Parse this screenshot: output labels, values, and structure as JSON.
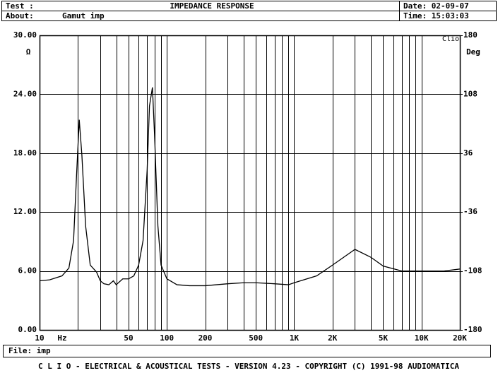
{
  "header": {
    "test_label": "Test :",
    "title": "IMPEDANCE RESPONSE",
    "date": "Date: 02-09-07",
    "about_label": "About:",
    "about": "Gamut imp",
    "time": "Time: 15:03:03"
  },
  "chart_data": {
    "type": "line",
    "x_scale": "log",
    "color": "#000000",
    "grid": true,
    "x_unit": "Hz",
    "y_unit": "Ω",
    "y2_label": "Deg",
    "watermark": "Clio",
    "x": [
      10,
      12,
      15,
      17,
      18.5,
      19.5,
      20.5,
      21.5,
      23,
      25,
      28,
      30,
      32,
      35,
      38,
      40,
      45,
      50,
      55,
      60,
      65,
      70,
      73,
      77,
      80,
      85,
      90,
      100,
      120,
      150,
      200,
      300,
      400,
      500,
      700,
      900,
      1000,
      1500,
      2000,
      3000,
      4000,
      5000,
      7000,
      10000,
      15000,
      20000
    ],
    "values": [
      5.0,
      5.1,
      5.5,
      6.3,
      9.1,
      15.6,
      21.4,
      17.8,
      10.6,
      6.6,
      5.9,
      5.0,
      4.7,
      4.6,
      5.0,
      4.6,
      5.2,
      5.2,
      5.5,
      6.6,
      9.1,
      16.3,
      22.8,
      24.7,
      19.9,
      10.6,
      6.6,
      5.2,
      4.6,
      4.5,
      4.5,
      4.7,
      4.8,
      4.8,
      4.7,
      4.6,
      4.8,
      5.5,
      6.6,
      8.2,
      7.4,
      6.5,
      6.0,
      6.0,
      6.0,
      6.2
    ],
    "xlim": [
      10,
      20000
    ],
    "xticks": [
      10,
      50,
      100,
      200,
      500,
      {
        "value": 1000,
        "label": "1K"
      },
      {
        "value": 2000,
        "label": "2K"
      },
      {
        "value": 5000,
        "label": "5K"
      },
      {
        "value": 10000,
        "label": "10K"
      },
      {
        "value": 20000,
        "label": "20K"
      }
    ],
    "xminor": [
      20,
      30,
      40,
      60,
      70,
      80,
      90,
      300,
      400,
      600,
      700,
      800,
      900,
      3000,
      4000,
      6000,
      7000,
      8000,
      9000
    ],
    "ylim": [
      0,
      30
    ],
    "yticks": [
      {
        "value": 0,
        "label": "0.00"
      },
      {
        "value": 6,
        "label": "6.00"
      },
      {
        "value": 12,
        "label": "12.00"
      },
      {
        "value": 18,
        "label": "18.00"
      },
      {
        "value": 24,
        "label": "24.00"
      },
      {
        "value": 30,
        "label": "30.00"
      }
    ],
    "y2lim": [
      -180,
      180
    ],
    "y2ticks": [
      -180,
      -108,
      -36,
      36,
      108,
      180
    ]
  },
  "footer": {
    "file": "File: imp",
    "credits": "C L I O  -  ELECTRICAL & ACOUSTICAL TESTS  -  VERSION 4.23  -  COPYRIGHT (C) 1991-98 AUDIOMATICA"
  }
}
